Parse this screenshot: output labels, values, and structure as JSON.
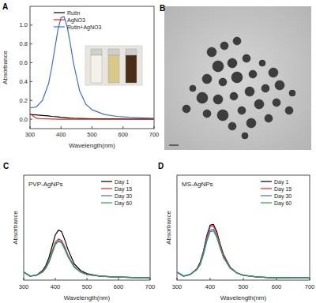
{
  "figure": {
    "panel_labels": [
      "A",
      "B",
      "C",
      "D"
    ]
  },
  "chart_data": [
    {
      "type": "line",
      "x_label": "Wavelength(nm)",
      "y_label": "Absorbance",
      "x": [
        300,
        320,
        340,
        360,
        370,
        380,
        390,
        400,
        410,
        420,
        430,
        440,
        460,
        480,
        500,
        540,
        580,
        620,
        660,
        700
      ],
      "xlim": [
        300,
        700
      ],
      "xticks": [
        300,
        400,
        500,
        600,
        700
      ],
      "ylim": [
        -0.1,
        1.2
      ],
      "yticks": [
        {
          "value": 0,
          "label": "0.0"
        },
        0.2,
        0.4,
        0.6,
        0.8,
        {
          "value": 1,
          "label": "1.0"
        }
      ],
      "legend": "upper left",
      "grid": false,
      "series": [
        {
          "name": "Rutin",
          "color": "#000000",
          "values": [
            0.05,
            0.045,
            0.04,
            0.035,
            0.03,
            0.028,
            0.025,
            0.02,
            0.018,
            0.015,
            0.012,
            0.01,
            0.008,
            0.006,
            0.005,
            0.004,
            0.003,
            0.002,
            0.002,
            0.002
          ]
        },
        {
          "name": "AgNO3",
          "color": "#e8251f",
          "values": [
            0.06,
            0.01,
            0.005,
            0.003,
            0.002,
            0.001,
            0,
            0,
            0,
            0,
            0,
            0,
            0,
            0,
            0,
            0,
            0,
            0,
            0,
            0
          ]
        },
        {
          "name": "Rutin+AgNO3",
          "color": "#3b6fe0",
          "values": [
            0.12,
            0.13,
            0.2,
            0.38,
            0.55,
            0.75,
            0.95,
            1.08,
            1.09,
            0.98,
            0.8,
            0.6,
            0.3,
            0.16,
            0.1,
            0.05,
            0.03,
            0.02,
            0.015,
            0.01
          ]
        }
      ]
    },
    {
      "type": "line",
      "title": "PVP-AgNPs",
      "x_label": "Wavelength(nm)",
      "y_label": "Absorbance",
      "x": [
        300,
        320,
        340,
        360,
        370,
        380,
        390,
        400,
        410,
        420,
        430,
        440,
        460,
        480,
        500,
        540,
        580,
        620,
        660,
        700
      ],
      "xlim": [
        300,
        700
      ],
      "xticks": [
        300,
        400,
        500,
        600,
        700
      ],
      "ylim": [
        0,
        1.3
      ],
      "tick_labels": "x",
      "legend": "upper right",
      "grid": false,
      "series": [
        {
          "name": "Day 1",
          "color": "#000000",
          "values": [
            0.1,
            0.05,
            0.06,
            0.12,
            0.18,
            0.28,
            0.42,
            0.56,
            0.62,
            0.6,
            0.5,
            0.38,
            0.2,
            0.12,
            0.08,
            0.05,
            0.04,
            0.035,
            0.03,
            0.03
          ]
        },
        {
          "name": "Day 15",
          "color": "#e8251f",
          "values": [
            0.1,
            0.05,
            0.06,
            0.11,
            0.16,
            0.24,
            0.36,
            0.47,
            0.51,
            0.49,
            0.41,
            0.31,
            0.17,
            0.1,
            0.07,
            0.05,
            0.04,
            0.035,
            0.03,
            0.03
          ]
        },
        {
          "name": "Day 30",
          "color": "#3b6fe0",
          "values": [
            0.1,
            0.05,
            0.06,
            0.1,
            0.15,
            0.23,
            0.34,
            0.45,
            0.49,
            0.47,
            0.39,
            0.3,
            0.16,
            0.1,
            0.07,
            0.05,
            0.04,
            0.035,
            0.03,
            0.03
          ]
        },
        {
          "name": "Day 60",
          "color": "#2ca05a",
          "values": [
            0.1,
            0.05,
            0.06,
            0.1,
            0.15,
            0.22,
            0.33,
            0.44,
            0.48,
            0.46,
            0.38,
            0.29,
            0.16,
            0.1,
            0.07,
            0.05,
            0.04,
            0.035,
            0.03,
            0.03
          ]
        }
      ]
    },
    {
      "type": "line",
      "title": "MS-AgNPs",
      "x_label": "Wavelength(nm)",
      "y_label": "Absorbance",
      "x": [
        300,
        320,
        340,
        360,
        370,
        380,
        390,
        400,
        410,
        420,
        430,
        440,
        460,
        480,
        500,
        540,
        580,
        620,
        660,
        700
      ],
      "xlim": [
        300,
        700
      ],
      "xticks": [
        300,
        400,
        500,
        600,
        700
      ],
      "ylim": [
        0,
        1.3
      ],
      "tick_labels": "x",
      "legend": "upper right",
      "grid": false,
      "series": [
        {
          "name": "Day 1",
          "color": "#000000",
          "values": [
            0.1,
            0.05,
            0.07,
            0.14,
            0.22,
            0.36,
            0.55,
            0.68,
            0.69,
            0.6,
            0.45,
            0.32,
            0.16,
            0.09,
            0.06,
            0.04,
            0.03,
            0.03,
            0.03,
            0.03
          ]
        },
        {
          "name": "Day 15",
          "color": "#e8251f",
          "values": [
            0.1,
            0.05,
            0.07,
            0.14,
            0.21,
            0.35,
            0.53,
            0.66,
            0.67,
            0.58,
            0.44,
            0.31,
            0.16,
            0.09,
            0.06,
            0.04,
            0.03,
            0.03,
            0.03,
            0.03
          ]
        },
        {
          "name": "Day 30",
          "color": "#3b6fe0",
          "values": [
            0.1,
            0.05,
            0.07,
            0.13,
            0.2,
            0.33,
            0.5,
            0.62,
            0.63,
            0.55,
            0.41,
            0.29,
            0.15,
            0.09,
            0.06,
            0.04,
            0.03,
            0.03,
            0.03,
            0.03
          ]
        },
        {
          "name": "Day 60",
          "color": "#2ca05a",
          "values": [
            0.1,
            0.05,
            0.07,
            0.13,
            0.19,
            0.32,
            0.48,
            0.6,
            0.61,
            0.53,
            0.4,
            0.28,
            0.15,
            0.09,
            0.06,
            0.04,
            0.03,
            0.03,
            0.03,
            0.03
          ]
        }
      ]
    }
  ]
}
